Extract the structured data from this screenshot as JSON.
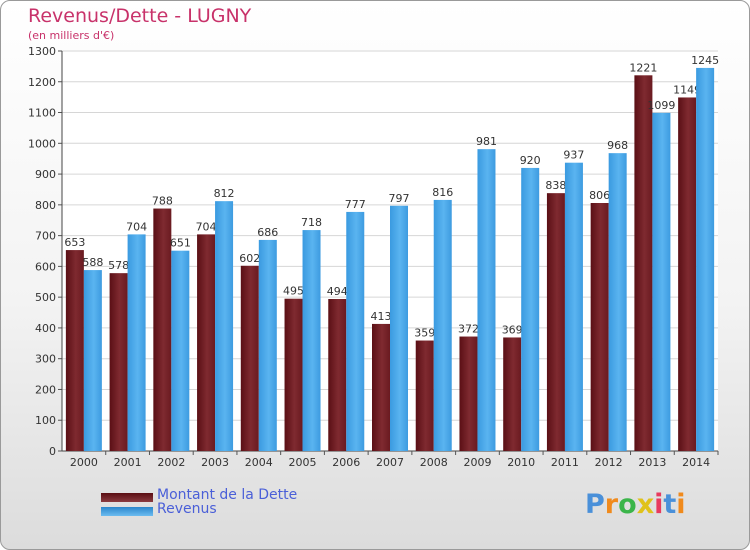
{
  "chart_data": {
    "type": "bar",
    "title": "Revenus/Dette - LUGNY",
    "subtitle": "(en milliers d'€)",
    "categories": [
      "2000",
      "2001",
      "2002",
      "2003",
      "2004",
      "2005",
      "2006",
      "2007",
      "2008",
      "2009",
      "2010",
      "2011",
      "2012",
      "2013",
      "2014"
    ],
    "series": [
      {
        "name": "Montant de la Dette",
        "color": "#7a1f25",
        "values": [
          653,
          578,
          788,
          704,
          602,
          495,
          494,
          413,
          359,
          372,
          369,
          838,
          806,
          1221,
          1149
        ]
      },
      {
        "name": "Revenus",
        "color": "#49a6e6",
        "values": [
          588,
          704,
          651,
          812,
          686,
          718,
          777,
          797,
          816,
          981,
          920,
          937,
          968,
          1099,
          1245
        ]
      }
    ],
    "ylim": [
      0,
      1300
    ],
    "yticks": [
      0,
      100,
      200,
      300,
      400,
      500,
      600,
      700,
      800,
      900,
      1000,
      1100,
      1200,
      1300
    ],
    "grid": true,
    "legend_position": "bottom-left"
  },
  "legend": {
    "debt_label": "Montant de la Dette",
    "revenue_label": "Revenus"
  },
  "logo": {
    "text": "Proxiti",
    "letter_colors": [
      "#4a90d9",
      "#f08a1c",
      "#3bb54a",
      "#e0c21a",
      "#e83a5e",
      "#4a90d9",
      "#f08a1c"
    ]
  }
}
